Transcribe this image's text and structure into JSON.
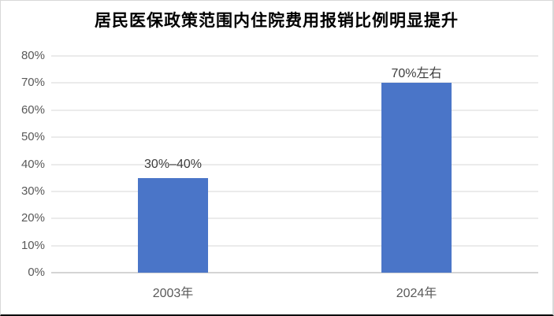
{
  "title": "居民医保政策范围内住院费用报销比例明显提升",
  "colors": {
    "bar": "#4a75c8",
    "gridline": "#ebebeb",
    "axis_line": "#d4d4d4",
    "axis_text": "#595959",
    "data_label_text": "#3d3d3d",
    "title_text": "#000000",
    "frame_border": "#d8d8d8",
    "bottom_edge": "#0a0a0a"
  },
  "chart_data": {
    "type": "bar",
    "title": "居民医保政策范围内住院费用报销比例明显提升",
    "categories": [
      "2003年",
      "2024年"
    ],
    "values": [
      35,
      70
    ],
    "data_labels": [
      "30%–40%",
      "70%左右"
    ],
    "xlabel": "",
    "ylabel": "",
    "ylim": [
      0,
      80
    ],
    "ytick_step": 10,
    "yticks": [
      "0%",
      "10%",
      "20%",
      "30%",
      "40%",
      "50%",
      "60%",
      "70%",
      "80%"
    ],
    "grid": true,
    "legend": false
  }
}
